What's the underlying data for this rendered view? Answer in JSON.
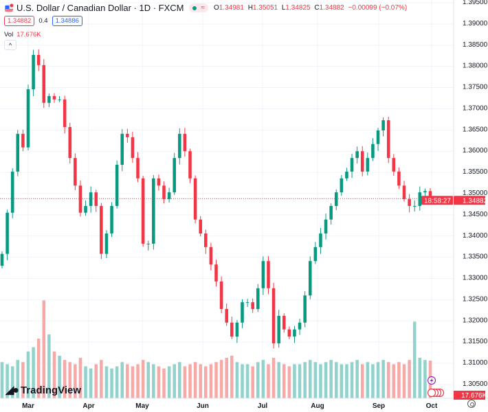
{
  "header": {
    "title": "U.S. Dollar / Canadian Dollar · 1D · FXCM",
    "market_badge": "≈",
    "ohlc": [
      {
        "label": "O",
        "value": "1.34981"
      },
      {
        "label": "H",
        "value": "1.35051"
      },
      {
        "label": "L",
        "value": "1.34825"
      },
      {
        "label": "C",
        "value": "1.34882"
      }
    ],
    "change": "−0.00099 (−0.07%)",
    "bid": "1.34882",
    "spread": "0.4",
    "ask": "1.34886",
    "volume_label": "Vol",
    "volume_value": "17.676K",
    "collapse_icon": "^"
  },
  "branding": {
    "logo_text": "TradingView"
  },
  "colors": {
    "up": "#089981",
    "down": "#f23645",
    "vol_up": "#92d2cc",
    "vol_down": "#f7a9a7",
    "grid": "#f0f3fa"
  },
  "chart_data": {
    "type": "candlestick",
    "title": "U.S. Dollar / Canadian Dollar · 1D · FXCM",
    "x_ticks": [
      "Mar",
      "Apr",
      "May",
      "Jun",
      "Jul",
      "Aug",
      "Sep",
      "Oct"
    ],
    "y_ticks": [
      "1.39500",
      "1.39000",
      "1.38500",
      "1.38000",
      "1.37500",
      "1.37000",
      "1.36500",
      "1.36000",
      "1.35500",
      "1.35000",
      "1.34500",
      "1.34000",
      "1.33500",
      "1.33000",
      "1.32500",
      "1.32000",
      "1.31500",
      "1.31000",
      "1.30500"
    ],
    "ylim": [
      1.305,
      1.395
    ],
    "first_open": 1.333,
    "close": [
      1.3358,
      1.3455,
      1.3552,
      1.3641,
      1.3609,
      1.3746,
      1.3827,
      1.3803,
      1.3714,
      1.373,
      1.3722,
      1.3722,
      1.3657,
      1.3584,
      1.3519,
      1.3455,
      1.3471,
      1.3503,
      1.3471,
      1.3358,
      1.3406,
      1.3471,
      1.3568,
      1.3641,
      1.3633,
      1.3584,
      1.3536,
      1.3382,
      1.3382,
      1.3536,
      1.3519,
      1.3487,
      1.3503,
      1.3584,
      1.3641,
      1.36,
      1.3536,
      1.3439,
      1.3406,
      1.3374,
      1.3333,
      1.3293,
      1.3228,
      1.3196,
      1.3163,
      1.3196,
      1.3244,
      1.3244,
      1.3228,
      1.3277,
      1.3341,
      1.3277,
      1.3147,
      1.3212,
      1.318,
      1.3163,
      1.318,
      1.3196,
      1.326,
      1.3341,
      1.3374,
      1.3406,
      1.3439,
      1.3471,
      1.3503,
      1.3536,
      1.3552,
      1.3584,
      1.36,
      1.3552,
      1.3584,
      1.3617,
      1.3649,
      1.3673,
      1.3584,
      1.3552,
      1.3519,
      1.3487,
      1.3471,
      1.3471,
      1.3503,
      1.3506,
      1.34882
    ],
    "volume_k": [
      17,
      16,
      15,
      18,
      17,
      22,
      24,
      28,
      46,
      30,
      22,
      20,
      18,
      17,
      16,
      19,
      15,
      14,
      16,
      18,
      15,
      14,
      15,
      17,
      16,
      15,
      16,
      18,
      17,
      16,
      15,
      14,
      15,
      16,
      17,
      15,
      16,
      17,
      16,
      15,
      16,
      17,
      18,
      19,
      20,
      17,
      16,
      16,
      15,
      17,
      18,
      16,
      19,
      17,
      16,
      15,
      16,
      16,
      17,
      18,
      17,
      16,
      17,
      18,
      17,
      16,
      16,
      17,
      18,
      16,
      17,
      16,
      17,
      18,
      17,
      16,
      17,
      16,
      18,
      36,
      19,
      18,
      17.676
    ],
    "last_price": "1.34882",
    "countdown": "18:58:27",
    "last_volume": "17.676K"
  }
}
